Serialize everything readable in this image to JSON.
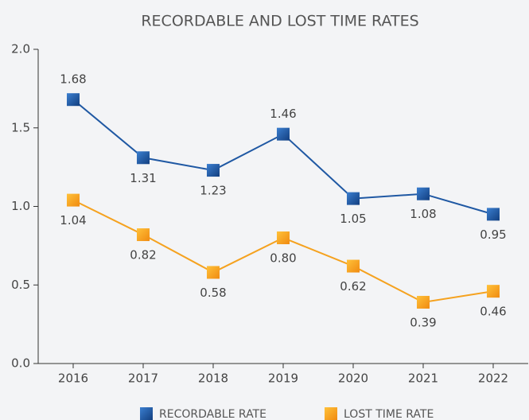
{
  "chart_data": {
    "type": "line",
    "title": "RECORDABLE AND LOST TIME RATES",
    "categories": [
      "2016",
      "2017",
      "2018",
      "2019",
      "2020",
      "2021",
      "2022"
    ],
    "series": [
      {
        "name": "RECORDABLE RATE",
        "color": "#1f58a3",
        "values": [
          1.68,
          1.31,
          1.23,
          1.46,
          1.05,
          1.08,
          0.95
        ],
        "value_labels": [
          "1.68",
          "1.31",
          "1.23",
          "1.46",
          "1.05",
          "1.08",
          "0.95"
        ]
      },
      {
        "name": "LOST TIME RATE",
        "color": "#f5a21f",
        "values": [
          1.04,
          0.82,
          0.58,
          0.8,
          0.62,
          0.39,
          0.46
        ],
        "value_labels": [
          "1.04",
          "0.82",
          "0.58",
          "0.80",
          "0.62",
          "0.39",
          "0.46"
        ]
      }
    ],
    "ylim": [
      0,
      2
    ],
    "yticks": [
      {
        "value": 0,
        "label": "0.0"
      },
      {
        "value": 0.5,
        "label": "0.5"
      },
      {
        "value": 1,
        "label": "1.0"
      },
      {
        "value": 1.5,
        "label": "1.5"
      },
      {
        "value": 2,
        "label": "2.0"
      }
    ],
    "grid": false,
    "legend": "bottom"
  }
}
